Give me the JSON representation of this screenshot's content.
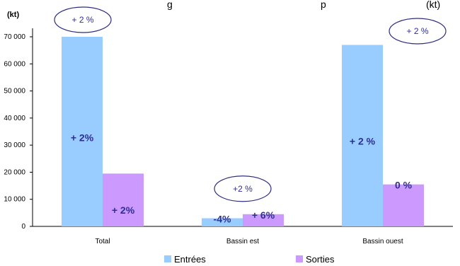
{
  "title_fragment_1": "g",
  "title_fragment_2": "p",
  "title_fragment_3": "(kt)",
  "unit": "(kt)",
  "chart_data": {
    "type": "bar",
    "categories": [
      "Total",
      "Bassin est",
      "Bassin ouest"
    ],
    "series": [
      {
        "name": "Entrées",
        "color": "#99ccff",
        "values": [
          70000,
          3000,
          67000
        ],
        "labels": [
          "+ 2%",
          "-4%",
          "+ 2 %"
        ]
      },
      {
        "name": "Sorties",
        "color": "#cc99ff",
        "values": [
          19500,
          4500,
          15500
        ],
        "labels": [
          "+ 2%",
          "+ 6%",
          "0 %"
        ]
      }
    ],
    "group_annotations": [
      "+ 2 %",
      "+2 %",
      "+ 2 %"
    ],
    "yticks": [
      "0",
      "10 000",
      "20 000",
      "30 000",
      "40 000",
      "50 000",
      "60 000",
      "70 000"
    ],
    "ylim": [
      0,
      70000
    ],
    "legend_position": "bottom",
    "grid": false
  }
}
